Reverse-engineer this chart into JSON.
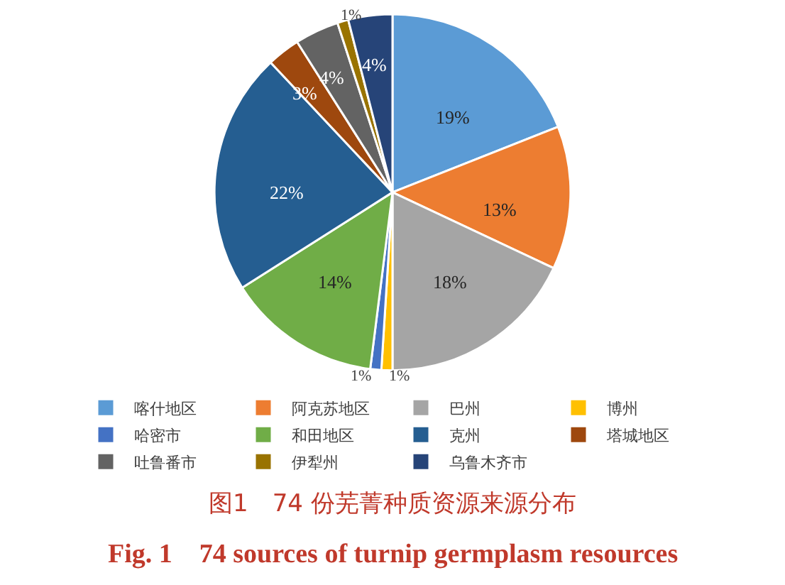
{
  "chart_data": {
    "type": "pie",
    "title": "图1　74 份芜菁种质资源来源分布",
    "subtitle": "Fig. 1　74 sources of turnip germplasm resources",
    "categories": [
      "喀什地区",
      "阿克苏地区",
      "巴州",
      "博州",
      "哈密市",
      "和田地区",
      "克州",
      "塔城地区",
      "吐鲁番市",
      "伊犁州",
      "乌鲁木齐市"
    ],
    "values": [
      19,
      13,
      18,
      1,
      1,
      14,
      22,
      3,
      4,
      1,
      4
    ],
    "value_labels": [
      "19%",
      "13%",
      "18%",
      "1%",
      "1%",
      "14%",
      "22%",
      "3%",
      "4%",
      "1%",
      "4%"
    ],
    "colors": [
      "#5b9bd5",
      "#ed7d31",
      "#a5a5a5",
      "#ffc000",
      "#4472c4",
      "#70ad47",
      "#255e91",
      "#9e480e",
      "#636363",
      "#997300",
      "#264478"
    ],
    "legend": "bottom"
  }
}
